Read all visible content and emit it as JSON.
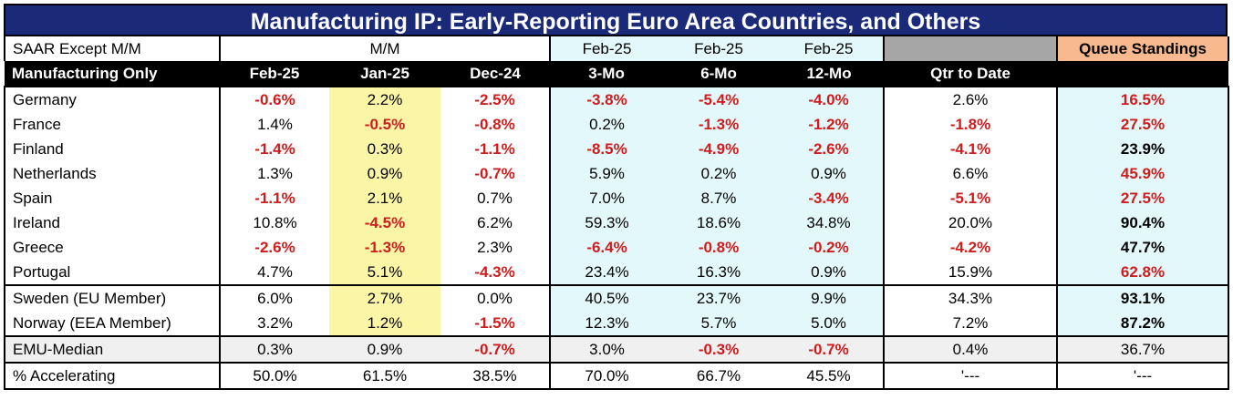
{
  "title": "Manufacturing IP: Early-Reporting Euro Area Countries, and Others",
  "header1": {
    "label": "SAAR Except M/M",
    "mm": "M/M",
    "c1": "Feb-25",
    "c2": "Feb-25",
    "c3": "Feb-25",
    "queue": "Queue Standings"
  },
  "header2": {
    "label": "Manufacturing Only",
    "cols": [
      "Feb-25",
      "Jan-25",
      "Dec-24",
      "3-Mo",
      "6-Mo",
      "12-Mo",
      "Qtr to Date",
      ""
    ]
  },
  "colors": {
    "title_bg": "#1a2a78",
    "negative": "#d01c1c",
    "highlight_yellow": "#fbf6a6",
    "cyan": "#e3f8fa",
    "peach": "#f7b98d"
  },
  "chart_data": {
    "type": "table",
    "title": "Manufacturing IP: Early-Reporting Euro Area Countries, and Others",
    "columns": [
      "Feb-25 M/M",
      "Jan-25 M/M",
      "Dec-24 M/M",
      "3-Mo",
      "6-Mo",
      "12-Mo",
      "Qtr to Date",
      "Queue Standings"
    ],
    "groups": [
      {
        "rows": [
          {
            "name": "Germany",
            "values": [
              "-0.6%",
              "2.2%",
              "-2.5%",
              "-3.8%",
              "-5.4%",
              "-4.0%",
              "2.6%",
              "16.5%"
            ],
            "neg": [
              1,
              0,
              1,
              1,
              1,
              1,
              0,
              1
            ]
          },
          {
            "name": "France",
            "values": [
              "1.4%",
              "-0.5%",
              "-0.8%",
              "0.2%",
              "-1.3%",
              "-1.2%",
              "-1.8%",
              "27.5%"
            ],
            "neg": [
              0,
              1,
              1,
              0,
              1,
              1,
              1,
              1
            ]
          },
          {
            "name": "Finland",
            "values": [
              "-1.4%",
              "0.3%",
              "-1.1%",
              "-8.5%",
              "-4.9%",
              "-2.6%",
              "-4.1%",
              "23.9%"
            ],
            "neg": [
              1,
              0,
              1,
              1,
              1,
              1,
              1,
              2
            ]
          },
          {
            "name": "Netherlands",
            "values": [
              "1.3%",
              "0.9%",
              "-0.7%",
              "5.9%",
              "0.2%",
              "0.9%",
              "6.6%",
              "45.9%"
            ],
            "neg": [
              0,
              0,
              1,
              0,
              0,
              0,
              0,
              1
            ]
          },
          {
            "name": "Spain",
            "values": [
              "-1.1%",
              "2.1%",
              "0.7%",
              "7.0%",
              "8.7%",
              "-3.4%",
              "-5.1%",
              "27.5%"
            ],
            "neg": [
              1,
              0,
              0,
              0,
              0,
              1,
              1,
              1
            ]
          },
          {
            "name": "Ireland",
            "values": [
              "10.8%",
              "-4.5%",
              "6.2%",
              "59.3%",
              "18.6%",
              "34.8%",
              "20.0%",
              "90.4%"
            ],
            "neg": [
              0,
              1,
              0,
              0,
              0,
              0,
              0,
              2
            ]
          },
          {
            "name": "Greece",
            "values": [
              "-2.6%",
              "-1.3%",
              "2.3%",
              "-6.4%",
              "-0.8%",
              "-0.2%",
              "-4.2%",
              "47.7%"
            ],
            "neg": [
              1,
              1,
              0,
              1,
              1,
              1,
              1,
              2
            ]
          },
          {
            "name": "Portugal",
            "values": [
              "4.7%",
              "5.1%",
              "-4.3%",
              "23.4%",
              "16.3%",
              "0.9%",
              "15.9%",
              "62.8%"
            ],
            "neg": [
              0,
              0,
              1,
              0,
              0,
              0,
              0,
              1
            ]
          }
        ]
      },
      {
        "rows": [
          {
            "name": "Sweden (EU Member)",
            "values": [
              "6.0%",
              "2.7%",
              "0.0%",
              "40.5%",
              "23.7%",
              "9.9%",
              "34.3%",
              "93.1%"
            ],
            "neg": [
              0,
              0,
              0,
              0,
              0,
              0,
              0,
              2
            ]
          },
          {
            "name": "Norway (EEA Member)",
            "values": [
              "3.2%",
              "1.2%",
              "-1.5%",
              "12.3%",
              "5.7%",
              "5.0%",
              "7.2%",
              "87.2%"
            ],
            "neg": [
              0,
              0,
              1,
              0,
              0,
              0,
              0,
              2
            ]
          }
        ]
      },
      {
        "rows": [
          {
            "name": "EMU-Median",
            "values": [
              "0.3%",
              "0.9%",
              "-0.7%",
              "3.0%",
              "-0.3%",
              "-0.7%",
              "0.4%",
              "36.7%"
            ],
            "neg": [
              0,
              0,
              1,
              0,
              1,
              1,
              0,
              0
            ]
          }
        ]
      },
      {
        "rows": [
          {
            "name": "% Accelerating",
            "values": [
              "50.0%",
              "61.5%",
              "38.5%",
              "70.0%",
              "66.7%",
              "45.5%",
              "'---",
              "'---"
            ],
            "neg": [
              0,
              0,
              0,
              0,
              0,
              0,
              0,
              0
            ]
          }
        ]
      }
    ]
  }
}
